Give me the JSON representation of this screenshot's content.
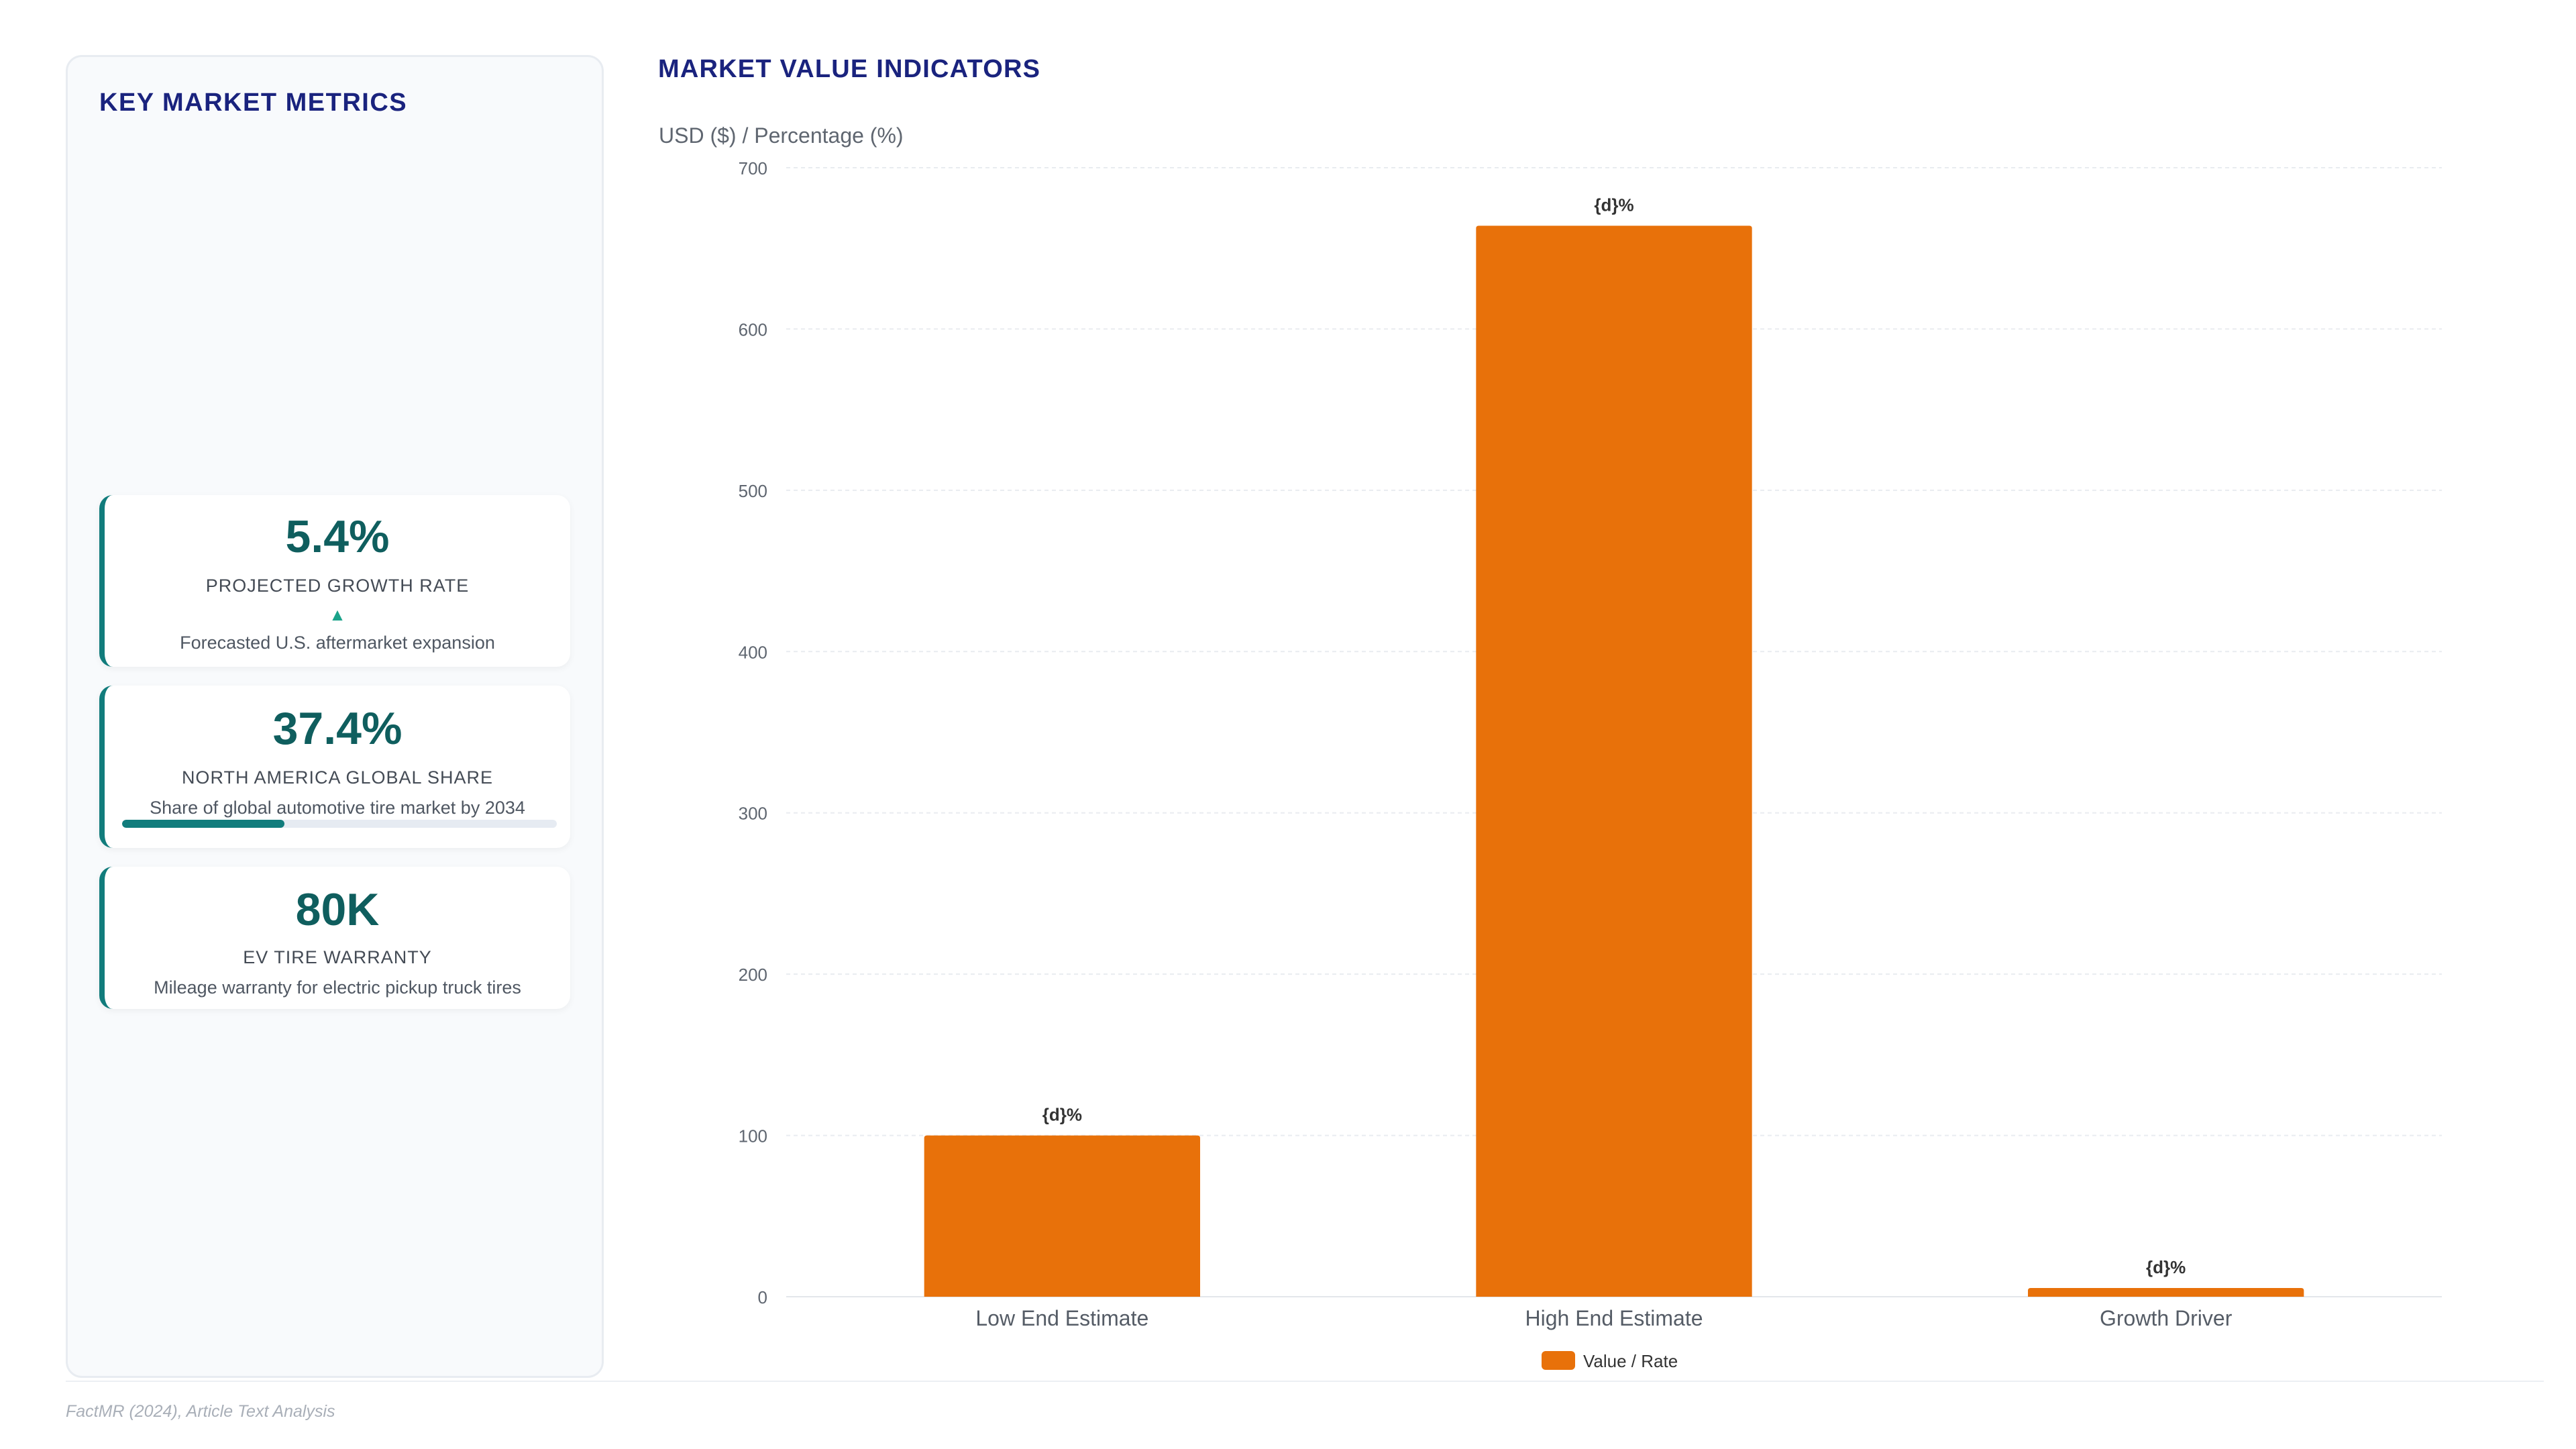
{
  "panel": {
    "title": "KEY MARKET METRICS",
    "cards": [
      {
        "value": "5.4%",
        "label": "PROJECTED GROWTH RATE",
        "trend_icon": "triangle-up-icon",
        "trend_glyph": "▲",
        "description": "Forecasted U.S. aftermarket expansion"
      },
      {
        "value": "37.4%",
        "label": "NORTH AMERICA GLOBAL SHARE",
        "description": "Share of global automotive tire market by 2034",
        "progress": 0.374
      },
      {
        "value": "80K",
        "label": "EV TIRE WARRANTY",
        "description": "Mileage warranty for electric pickup truck tires"
      }
    ]
  },
  "chart_title": "MARKET VALUE INDICATORS",
  "chart_data": {
    "type": "bar",
    "ylabel": "USD ($) / Percentage (%)",
    "ylim": [
      0,
      700
    ],
    "yticks": [
      0,
      100,
      200,
      300,
      400,
      500,
      600,
      700
    ],
    "categories": [
      "Low End Estimate",
      "High End Estimate",
      "Growth Driver"
    ],
    "series": [
      {
        "name": "Value / Rate",
        "values": [
          100,
          664,
          5.4
        ],
        "data_labels": [
          "{d}%",
          "{d}%",
          "{d}%"
        ],
        "color": "#e8710a"
      }
    ],
    "grid": true,
    "legend_position": "bottom-center"
  },
  "source": "FactMR (2024), Article Text Analysis"
}
